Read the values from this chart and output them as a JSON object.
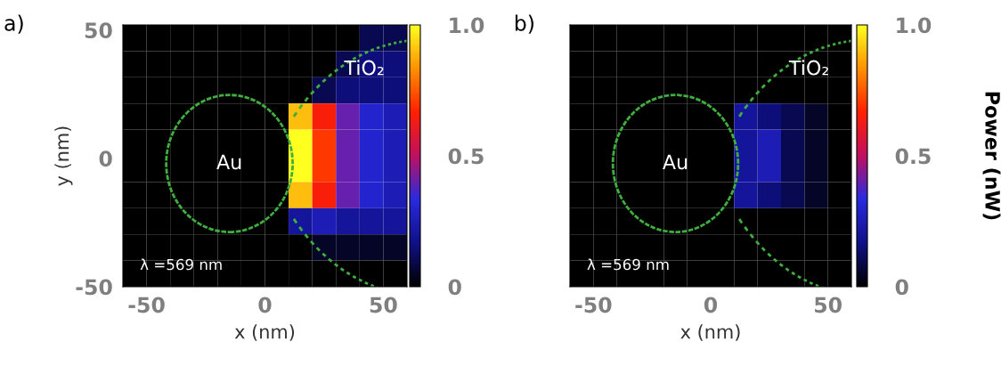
{
  "chart_data": [
    {
      "type": "heatmap",
      "title": "a)",
      "xlabel": "x (nm)",
      "ylabel": "y (nm)",
      "xlim": [
        -60,
        60
      ],
      "ylim": [
        -50,
        52
      ],
      "xticks": [
        -50,
        0,
        50
      ],
      "yticks": [
        -50,
        0,
        50
      ],
      "clim": [
        0,
        1
      ],
      "cticks": [
        0,
        0.5,
        {
          "value": 1,
          "label": "1.0"
        }
      ],
      "annotations": [
        "Au",
        "TiO₂",
        "λ =569 nm"
      ],
      "cells": [
        [
          0,
          0,
          0,
          0,
          0,
          0,
          0,
          0,
          0,
          0,
          0.1,
          0.1
        ],
        [
          0,
          0,
          0,
          0,
          0,
          0,
          0,
          0,
          0,
          0.1,
          0.15,
          0.15
        ],
        [
          0,
          0,
          0,
          0,
          0,
          0,
          0,
          0,
          0.1,
          0.15,
          0.15,
          0.15
        ],
        [
          0,
          0,
          0,
          0,
          0,
          0,
          0,
          0.9,
          0.65,
          0.4,
          0.3,
          0.25
        ],
        [
          0,
          0,
          0,
          0,
          0,
          0,
          0,
          1,
          0.7,
          0.4,
          0.3,
          0.25
        ],
        [
          0,
          0,
          0,
          0,
          0,
          0,
          0,
          1,
          0.7,
          0.4,
          0.3,
          0.25
        ],
        [
          0,
          0,
          0,
          0,
          0,
          0,
          0,
          0.9,
          0.65,
          0.4,
          0.3,
          0.25
        ],
        [
          0,
          0,
          0,
          0,
          0,
          0,
          0,
          0.2,
          0.25,
          0.2,
          0.2,
          0.2
        ],
        [
          0,
          0,
          0,
          0,
          0,
          0,
          0,
          0,
          0.05,
          0.05,
          0.05,
          0.05
        ],
        [
          0,
          0,
          0,
          0,
          0,
          0,
          0,
          0,
          0,
          0,
          0,
          0
        ]
      ]
    },
    {
      "type": "heatmap",
      "title": "b)",
      "xlabel": "x (nm)",
      "clabel": "Power (nW)",
      "tick_labels": "x",
      "xlim": [
        -60,
        60
      ],
      "ylim": [
        -50,
        52
      ],
      "xticks": [
        -50,
        0,
        50
      ],
      "yticks": [
        -50,
        0,
        50
      ],
      "clim": [
        0,
        1
      ],
      "cticks": [
        0,
        0.5,
        {
          "value": 1,
          "label": "1.0"
        }
      ],
      "annotations": [
        "Au",
        "TiO₂",
        "λ =569 nm"
      ],
      "cells": [
        [
          0,
          0,
          0,
          0,
          0,
          0,
          0,
          0,
          0,
          0,
          0,
          0
        ],
        [
          0,
          0,
          0,
          0,
          0,
          0,
          0,
          0,
          0,
          0,
          0,
          0
        ],
        [
          0,
          0,
          0,
          0,
          0,
          0,
          0,
          0,
          0,
          0,
          0,
          0
        ],
        [
          0,
          0,
          0,
          0,
          0,
          0,
          0,
          0.2,
          0.15,
          0.1,
          0.05,
          0
        ],
        [
          0,
          0,
          0,
          0,
          0,
          0,
          0,
          0.2,
          0.25,
          0.1,
          0.05,
          0
        ],
        [
          0,
          0,
          0,
          0,
          0,
          0,
          0,
          0.2,
          0.25,
          0.1,
          0.05,
          0
        ],
        [
          0,
          0,
          0,
          0,
          0,
          0,
          0,
          0.2,
          0.15,
          0.1,
          0.05,
          0
        ],
        [
          0,
          0,
          0,
          0,
          0,
          0,
          0,
          0,
          0,
          0,
          0,
          0
        ],
        [
          0,
          0,
          0,
          0,
          0,
          0,
          0,
          0,
          0,
          0,
          0,
          0
        ],
        [
          0,
          0,
          0,
          0,
          0,
          0,
          0,
          0,
          0,
          0,
          0,
          0
        ]
      ]
    }
  ]
}
